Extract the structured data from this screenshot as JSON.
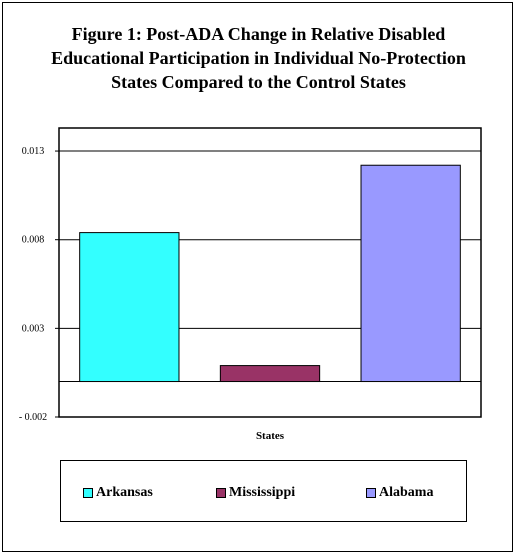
{
  "chart_data": {
    "type": "bar",
    "title": "Figure 1:  Post-ADA Change in Relative Disabled Educational Participation in Individual No-Protection States Compared to the Control States",
    "xlabel": "States",
    "ylabel": "",
    "categories": [
      "Arkansas",
      "Mississippi",
      "Alabama"
    ],
    "values": [
      0.0084,
      0.0009,
      0.0122
    ],
    "colors": [
      "#33ffff",
      "#993366",
      "#9999ff"
    ],
    "ylim": [
      -0.002,
      0.0143
    ],
    "yticks": [
      0.013,
      0.008,
      0.003,
      -0.002
    ],
    "ytick_labels": [
      "0.013",
      "0.008",
      "0.003",
      "- 0.002"
    ],
    "grid": true,
    "legend_position": "bottom"
  }
}
